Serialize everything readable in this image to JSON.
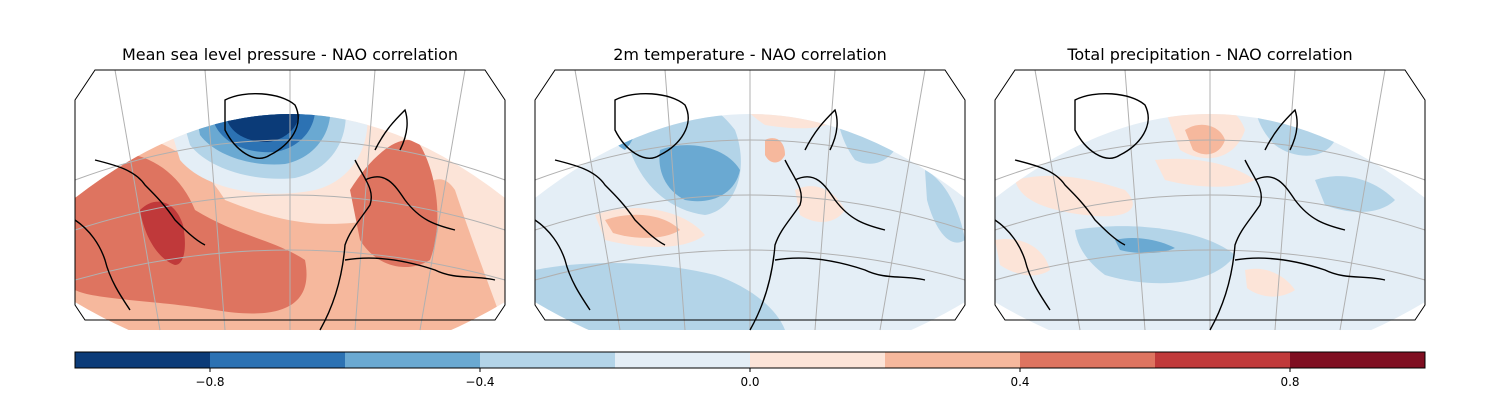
{
  "figure": {
    "panels": [
      {
        "title": "Mean sea level pressure - NAO correlation"
      },
      {
        "title": "2m temperature - NAO correlation"
      },
      {
        "title": "Total precipitation - NAO correlation"
      }
    ]
  },
  "colorbar": {
    "ticks": [
      "−0.8",
      "−0.4",
      "0.0",
      "0.4",
      "0.8"
    ],
    "tick_values": [
      -0.8,
      -0.4,
      0.0,
      0.4,
      0.8
    ],
    "range": [
      -1.0,
      1.0
    ],
    "bins": [
      {
        "from": -1.0,
        "to": -0.8,
        "color": "#0b3b78"
      },
      {
        "from": -0.8,
        "to": -0.6,
        "color": "#2c72b3"
      },
      {
        "from": -0.6,
        "to": -0.4,
        "color": "#6aa9d2"
      },
      {
        "from": -0.4,
        "to": -0.2,
        "color": "#b3d4e8"
      },
      {
        "from": -0.2,
        "to": 0.0,
        "color": "#e4eef6"
      },
      {
        "from": 0.0,
        "to": 0.2,
        "color": "#fce4d8"
      },
      {
        "from": 0.2,
        "to": 0.4,
        "color": "#f6b89d"
      },
      {
        "from": 0.4,
        "to": 0.6,
        "color": "#de7460"
      },
      {
        "from": 0.6,
        "to": 0.8,
        "color": "#c0393a"
      },
      {
        "from": 0.8,
        "to": 1.0,
        "color": "#7f0e21"
      }
    ]
  }
}
